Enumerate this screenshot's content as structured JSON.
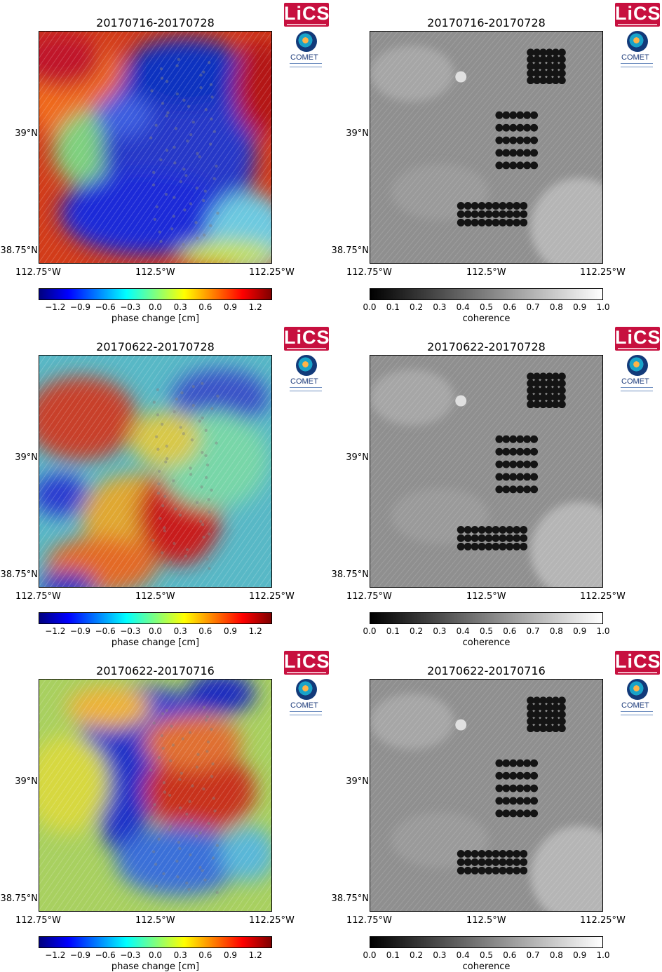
{
  "logos": {
    "lics": "LiCS",
    "comet": "COMET"
  },
  "axes": {
    "lat_upper": "39°N",
    "lat_lower": "38.75°N",
    "lon_left": "112.75°W",
    "lon_mid": "112.5°W",
    "lon_right": "112.25°W"
  },
  "colorbars": {
    "phase": {
      "label": "phase change [cm]",
      "ticks": [
        "−1.2",
        "−0.9",
        "−0.6",
        "−0.3",
        "0.0",
        "0.3",
        "0.6",
        "0.9",
        "1.2"
      ],
      "range": [
        -1.4,
        1.4
      ]
    },
    "coherence": {
      "label": "coherence",
      "ticks": [
        "0.0",
        "0.1",
        "0.2",
        "0.3",
        "0.4",
        "0.5",
        "0.6",
        "0.7",
        "0.8",
        "0.9",
        "1.0"
      ],
      "range": [
        0.0,
        1.0
      ]
    }
  },
  "rows": [
    {
      "interferogram": "20170716-20170728",
      "coherence": "20170716-20170728"
    },
    {
      "interferogram": "20170622-20170728",
      "coherence": "20170622-20170728"
    },
    {
      "interferogram": "20170622-20170716",
      "coherence": "20170622-20170716"
    }
  ],
  "colors": {
    "lics_red": "#c7103f",
    "comet_blue": "#1b3a7a",
    "phase_colormap": [
      "#00007f",
      "#0000ff",
      "#007fff",
      "#00ffff",
      "#7fff7f",
      "#ffff00",
      "#ff7f00",
      "#ff0000",
      "#7f0000"
    ]
  }
}
